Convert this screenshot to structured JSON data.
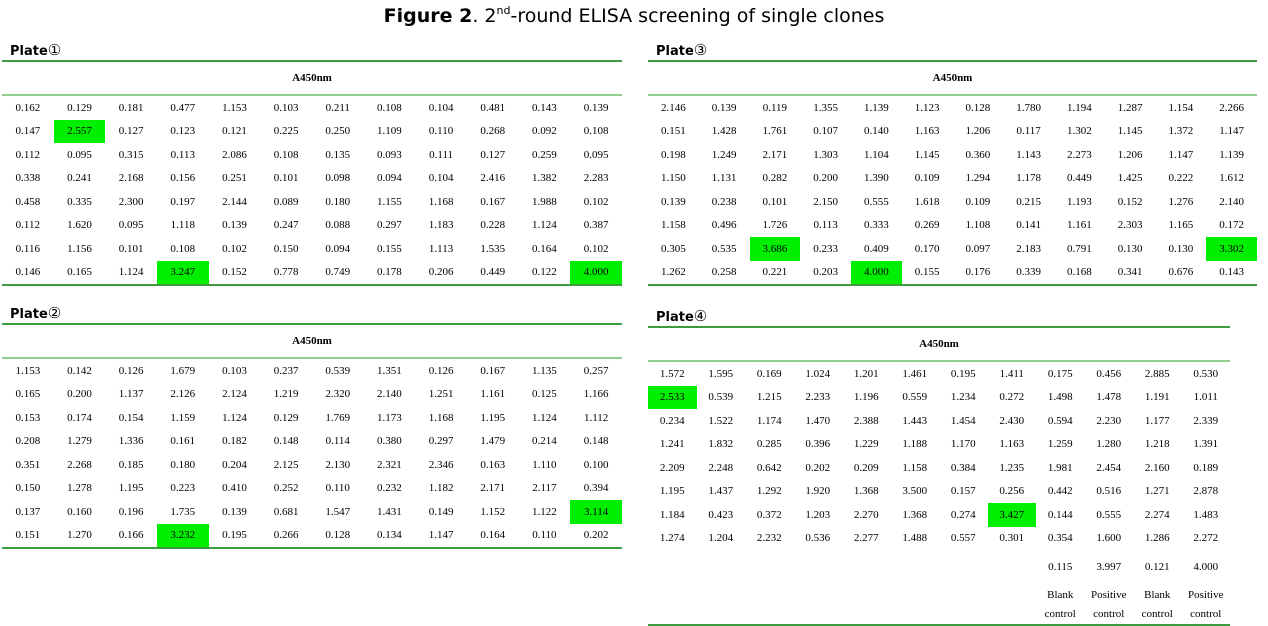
{
  "figure": {
    "label": "Figure 2",
    "title_prefix": ". 2",
    "title_sup": "nd",
    "title_rest": "-round ELISA screening of single clones"
  },
  "highlight_color": "#00ee00",
  "rule_color": "#3d9a3d",
  "plates": [
    {
      "name": "Plate",
      "number": "①",
      "header": "A450nm",
      "rows": [
        [
          "0.162",
          "0.129",
          "0.181",
          "0.477",
          "1.153",
          "0.103",
          "0.211",
          "0.108",
          "0.104",
          "0.481",
          "0.143",
          "0.139"
        ],
        [
          "0.147",
          "2.557",
          "0.127",
          "0.123",
          "0.121",
          "0.225",
          "0.250",
          "1.109",
          "0.110",
          "0.268",
          "0.092",
          "0.108"
        ],
        [
          "0.112",
          "0.095",
          "0.315",
          "0.113",
          "2.086",
          "0.108",
          "0.135",
          "0.093",
          "0.111",
          "0.127",
          "0.259",
          "0.095"
        ],
        [
          "0.338",
          "0.241",
          "2.168",
          "0.156",
          "0.251",
          "0.101",
          "0.098",
          "0.094",
          "0.104",
          "2.416",
          "1.382",
          "2.283"
        ],
        [
          "0.458",
          "0.335",
          "2.300",
          "0.197",
          "2.144",
          "0.089",
          "0.180",
          "1.155",
          "1.168",
          "0.167",
          "1.988",
          "0.102"
        ],
        [
          "0.112",
          "1.620",
          "0.095",
          "1.118",
          "0.139",
          "0.247",
          "0.088",
          "0.297",
          "1.183",
          "0.228",
          "1.124",
          "0.387"
        ],
        [
          "0.116",
          "1.156",
          "0.101",
          "0.108",
          "0.102",
          "0.150",
          "0.094",
          "0.155",
          "1.113",
          "1.535",
          "0.164",
          "0.102"
        ],
        [
          "0.146",
          "0.165",
          "1.124",
          "3.247",
          "0.152",
          "0.778",
          "0.749",
          "0.178",
          "0.206",
          "0.449",
          "0.122",
          "4.000"
        ]
      ],
      "highlighted": [
        [
          1,
          1
        ],
        [
          7,
          3
        ],
        [
          7,
          11
        ]
      ]
    },
    {
      "name": "Plate",
      "number": "②",
      "header": "A450nm",
      "rows": [
        [
          "1.153",
          "0.142",
          "0.126",
          "1.679",
          "0.103",
          "0.237",
          "0.539",
          "1.351",
          "0.126",
          "0.167",
          "1.135",
          "0.257"
        ],
        [
          "0.165",
          "0.200",
          "1.137",
          "2.126",
          "2.124",
          "1.219",
          "2.320",
          "2.140",
          "1.251",
          "1.161",
          "0.125",
          "1.166"
        ],
        [
          "0.153",
          "0.174",
          "0.154",
          "1.159",
          "1.124",
          "0.129",
          "1.769",
          "1.173",
          "1.168",
          "1.195",
          "1.124",
          "1.112"
        ],
        [
          "0.208",
          "1.279",
          "1.336",
          "0.161",
          "0.182",
          "0.148",
          "0.114",
          "0.380",
          "0.297",
          "1.479",
          "0.214",
          "0.148"
        ],
        [
          "0.351",
          "2.268",
          "0.185",
          "0.180",
          "0.204",
          "2.125",
          "2.130",
          "2.321",
          "2.346",
          "0.163",
          "1.110",
          "0.100"
        ],
        [
          "0.150",
          "1.278",
          "1.195",
          "0.223",
          "0.410",
          "0.252",
          "0.110",
          "0.232",
          "1.182",
          "2.171",
          "2.117",
          "0.394"
        ],
        [
          "0.137",
          "0.160",
          "0.196",
          "1.735",
          "0.139",
          "0.681",
          "1.547",
          "1.431",
          "0.149",
          "1.152",
          "1.122",
          "3.114"
        ],
        [
          "0.151",
          "1.270",
          "0.166",
          "3.232",
          "0.195",
          "0.266",
          "0.128",
          "0.134",
          "1.147",
          "0.164",
          "0.110",
          "0.202"
        ]
      ],
      "highlighted": [
        [
          6,
          11
        ],
        [
          7,
          3
        ]
      ]
    },
    {
      "name": "Plate",
      "number": "③",
      "header": "A450nm",
      "rows": [
        [
          "2.146",
          "0.139",
          "0.119",
          "1.355",
          "1.139",
          "1.123",
          "0.128",
          "1.780",
          "1.194",
          "1.287",
          "1.154",
          "2.266"
        ],
        [
          "0.151",
          "1.428",
          "1.761",
          "0.107",
          "0.140",
          "1.163",
          "1.206",
          "0.117",
          "1.302",
          "1.145",
          "1.372",
          "1.147"
        ],
        [
          "0.198",
          "1.249",
          "2.171",
          "1.303",
          "1.104",
          "1.145",
          "0.360",
          "1.143",
          "2.273",
          "1.206",
          "1.147",
          "1.139"
        ],
        [
          "1.150",
          "1.131",
          "0.282",
          "0.200",
          "1.390",
          "0.109",
          "1.294",
          "1.178",
          "0.449",
          "1.425",
          "0.222",
          "1.612"
        ],
        [
          "0.139",
          "0.238",
          "0.101",
          "2.150",
          "0.555",
          "1.618",
          "0.109",
          "0.215",
          "1.193",
          "0.152",
          "1.276",
          "2.140"
        ],
        [
          "1.158",
          "0.496",
          "1.726",
          "0.113",
          "0.333",
          "0.269",
          "1.108",
          "0.141",
          "1.161",
          "2.303",
          "1.165",
          "0.172"
        ],
        [
          "0.305",
          "0.535",
          "3.686",
          "0.233",
          "0.409",
          "0.170",
          "0.097",
          "2.183",
          "0.791",
          "0.130",
          "0.130",
          "3.302"
        ],
        [
          "1.262",
          "0.258",
          "0.221",
          "0.203",
          "4.000",
          "0.155",
          "0.176",
          "0.339",
          "0.168",
          "0.341",
          "0.676",
          "0.143"
        ]
      ],
      "highlighted": [
        [
          6,
          2
        ],
        [
          6,
          11
        ],
        [
          7,
          4
        ]
      ]
    },
    {
      "name": "Plate",
      "number": "④",
      "header": "A450nm",
      "rows": [
        [
          "1.572",
          "1.595",
          "0.169",
          "1.024",
          "1.201",
          "1.461",
          "0.195",
          "1.411",
          "0.175",
          "0.456",
          "2.885",
          "0.530"
        ],
        [
          "2.533",
          "0.539",
          "1.215",
          "2.233",
          "1.196",
          "0.559",
          "1.234",
          "0.272",
          "1.498",
          "1.478",
          "1.191",
          "1.011"
        ],
        [
          "0.234",
          "1.522",
          "1.174",
          "1.470",
          "2.388",
          "1.443",
          "1.454",
          "2.430",
          "0.594",
          "2.230",
          "1.177",
          "2.339"
        ],
        [
          "1.241",
          "1.832",
          "0.285",
          "0.396",
          "1.229",
          "1.188",
          "1.170",
          "1.163",
          "1.259",
          "1.280",
          "1.218",
          "1.391"
        ],
        [
          "2.209",
          "2.248",
          "0.642",
          "0.202",
          "0.209",
          "1.158",
          "0.384",
          "1.235",
          "1.981",
          "2.454",
          "2.160",
          "0.189"
        ],
        [
          "1.195",
          "1.437",
          "1.292",
          "1.920",
          "1.368",
          "3.500",
          "0.157",
          "0.256",
          "0.442",
          "0.516",
          "1.271",
          "2.878"
        ],
        [
          "1.184",
          "0.423",
          "0.372",
          "1.203",
          "2.270",
          "1.368",
          "0.274",
          "3.427",
          "0.144",
          "0.555",
          "2.274",
          "1.483"
        ],
        [
          "1.274",
          "1.204",
          "2.232",
          "0.536",
          "2.277",
          "1.488",
          "0.557",
          "0.301",
          "0.354",
          "1.600",
          "1.286",
          "2.272"
        ]
      ],
      "highlighted": [
        [
          1,
          0
        ],
        [
          6,
          7
        ]
      ],
      "controls": {
        "values": [
          "0.115",
          "3.997",
          "0.121",
          "4.000"
        ],
        "labels": [
          [
            "Blank",
            "control"
          ],
          [
            "Positive",
            "control"
          ],
          [
            "Blank",
            "control"
          ],
          [
            "Positive",
            "control"
          ]
        ]
      }
    }
  ]
}
